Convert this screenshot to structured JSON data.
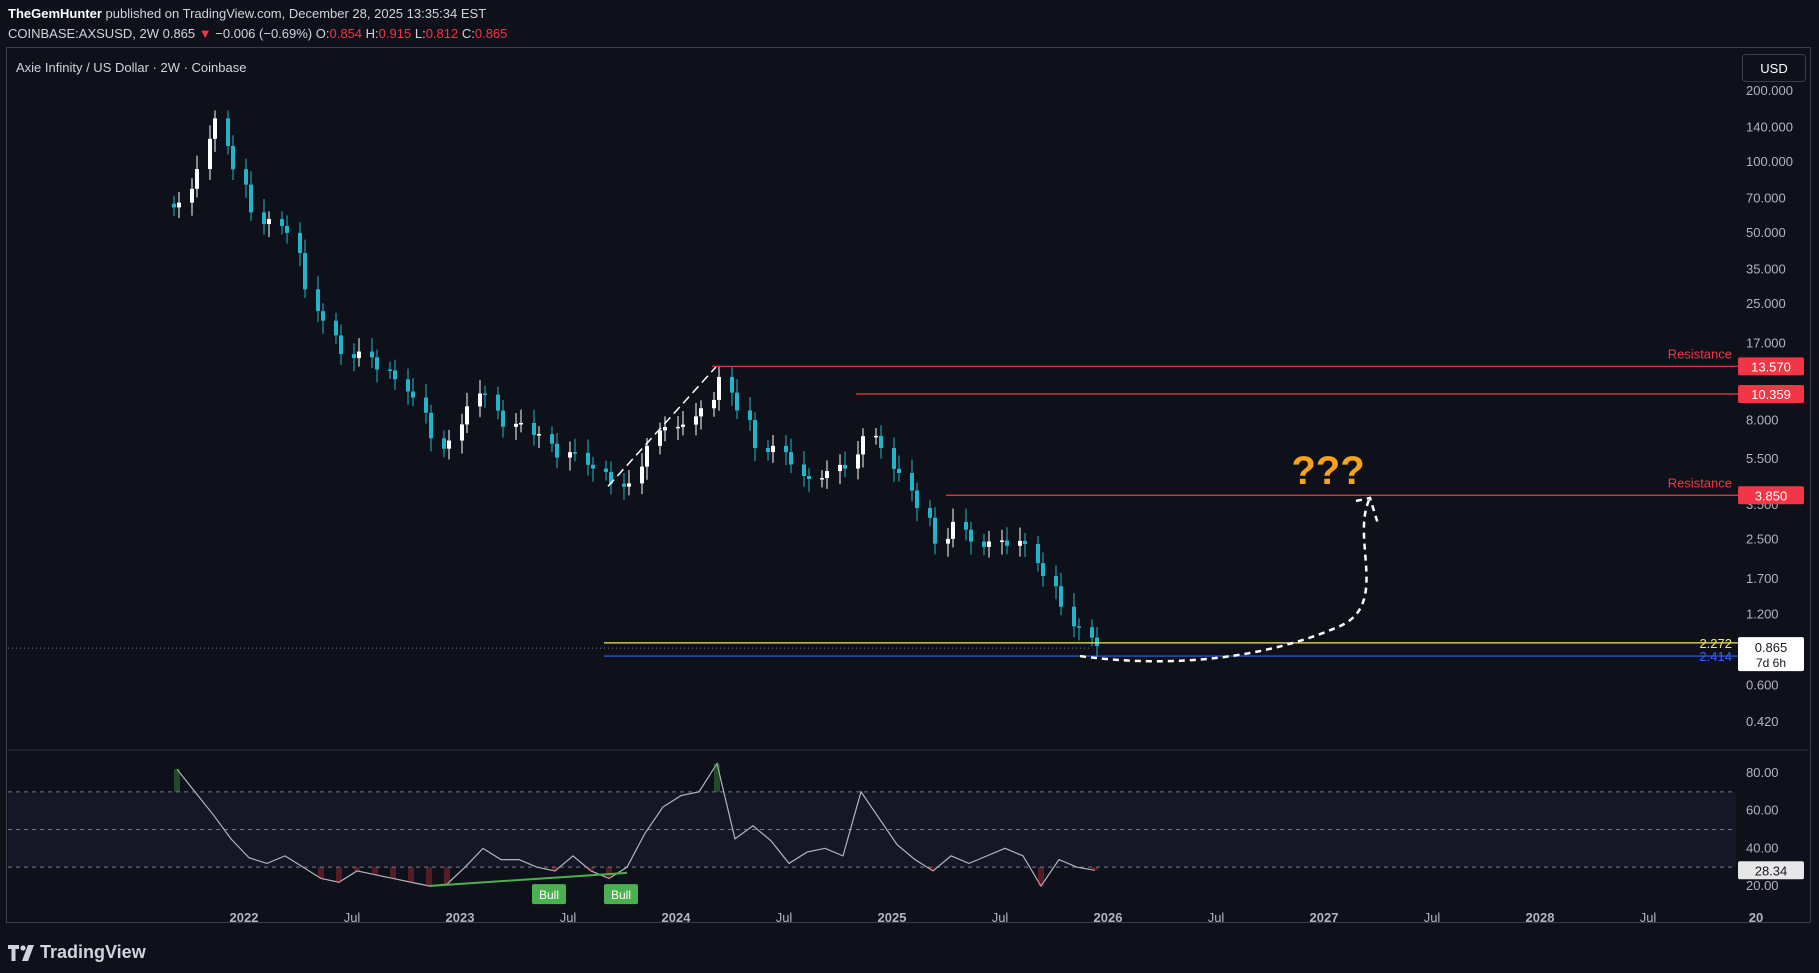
{
  "header": {
    "author": "TheGemHunter",
    "published": "published on TradingView.com, December 28, 2025 13:35:34 EST",
    "symbol": "COINBASE:AXSUSD, 2W",
    "last": "0.865",
    "change_arrow": "▼",
    "change": "−0.006 (−0.69%)",
    "o_label": "O:",
    "o_value": "0.854",
    "h_label": "H:",
    "h_value": "0.915",
    "l_label": "L:",
    "l_value": "0.812",
    "c_label": "C:",
    "c_value": "0.865"
  },
  "legend": "Axie Infinity / US Dollar · 2W · Coinbase",
  "currency_button": "USD",
  "footer_brand": "TradingView",
  "colors": {
    "background": "#0e111a",
    "bull": "#ffffff",
    "bear": "#22b5c9",
    "resistance": "#f23645",
    "support_yellow": "#f5e66e",
    "support_blue": "#2962ff",
    "rsi_line": "#b2b5be",
    "rsi_band": "#7e57c2",
    "divergence": "#4caf50",
    "question": "#f7a21b"
  },
  "chart_data": {
    "type": "candlestick",
    "price_scale": "log",
    "x_range": [
      "2021-08",
      "2029-01"
    ],
    "price_axis_ticks": [
      "200.000",
      "140.000",
      "100.000",
      "70.000",
      "50.000",
      "35.000",
      "25.000",
      "17.000",
      "8.000",
      "5.500",
      "3.500",
      "2.500",
      "1.700",
      "1.200",
      "0.600",
      "0.420"
    ],
    "time_axis_ticks": [
      "2022",
      "Jul",
      "2023",
      "Jul",
      "2024",
      "Jul",
      "2025",
      "Jul",
      "2026",
      "Jul",
      "2027",
      "Jul",
      "2028",
      "Jul",
      "20"
    ],
    "ohlc_close_path": [
      [
        "2021-09",
        70
      ],
      [
        "2021-10",
        88
      ],
      [
        "2021-11",
        150
      ],
      [
        "2021-12",
        95
      ],
      [
        "2022-01",
        65
      ],
      [
        "2022-02",
        55
      ],
      [
        "2022-03",
        50
      ],
      [
        "2022-04",
        30
      ],
      [
        "2022-05",
        20
      ],
      [
        "2022-06",
        15
      ],
      [
        "2022-07",
        16
      ],
      [
        "2022-08",
        14
      ],
      [
        "2022-09",
        11.5
      ],
      [
        "2022-10",
        10
      ],
      [
        "2022-11",
        7
      ],
      [
        "2022-12",
        6.2
      ],
      [
        "2023-01",
        9
      ],
      [
        "2023-02",
        10.5
      ],
      [
        "2023-03",
        8
      ],
      [
        "2023-04",
        7.5
      ],
      [
        "2023-05",
        7
      ],
      [
        "2023-06",
        5.8
      ],
      [
        "2023-07",
        5.5
      ],
      [
        "2023-08",
        4.9
      ],
      [
        "2023-09",
        4.4
      ],
      [
        "2023-10",
        4.6
      ],
      [
        "2023-11",
        6
      ],
      [
        "2023-12",
        7.5
      ],
      [
        "2024-01",
        8
      ],
      [
        "2024-02",
        8.5
      ],
      [
        "2024-03",
        12
      ],
      [
        "2024-04",
        9
      ],
      [
        "2024-05",
        6.5
      ],
      [
        "2024-06",
        6.0
      ],
      [
        "2024-07",
        5.2
      ],
      [
        "2024-08",
        4.7
      ],
      [
        "2024-09",
        4.6
      ],
      [
        "2024-10",
        4.9
      ],
      [
        "2024-11",
        7
      ],
      [
        "2024-12",
        6.5
      ],
      [
        "2025-01",
        4.6
      ],
      [
        "2025-02",
        3.4
      ],
      [
        "2025-03",
        2.5
      ],
      [
        "2025-04",
        2.8
      ],
      [
        "2025-05",
        2.4
      ],
      [
        "2025-06",
        2.5
      ],
      [
        "2025-07",
        2.5
      ],
      [
        "2025-08",
        2.3
      ],
      [
        "2025-09",
        1.75
      ],
      [
        "2025-10",
        1.35
      ],
      [
        "2025-11",
        1.0
      ],
      [
        "2025-12",
        0.865
      ]
    ],
    "last_price": "0.865",
    "countdown": "7d 6h",
    "horizontal_levels": [
      {
        "label": "Resistance",
        "value": "13.570",
        "color": "#f23645"
      },
      {
        "label": "",
        "value": "10.359",
        "color": "#f23645"
      },
      {
        "label": "Resistance",
        "value": "3.850",
        "color": "#f23645"
      },
      {
        "label": "2.272",
        "value": "0.91",
        "color": "#f5e66e"
      },
      {
        "label": "2.414",
        "value": "0.80",
        "color": "#2962ff"
      }
    ],
    "annotation_text": "???",
    "rsi": {
      "axis_ticks": [
        "80.00",
        "60.00",
        "40.00",
        "20.00"
      ],
      "bands": [
        70,
        50,
        30
      ],
      "last_value": "28.34",
      "divergence_labels": [
        "Bull",
        "Bull"
      ],
      "values": [
        [
          "2021-09",
          82
        ],
        [
          "2021-10",
          70
        ],
        [
          "2021-11",
          58
        ],
        [
          "2021-12",
          45
        ],
        [
          "2022-01",
          35
        ],
        [
          "2022-02",
          32
        ],
        [
          "2022-03",
          36
        ],
        [
          "2022-04",
          30
        ],
        [
          "2022-05",
          24
        ],
        [
          "2022-06",
          22
        ],
        [
          "2022-07",
          28
        ],
        [
          "2022-08",
          26
        ],
        [
          "2022-09",
          24
        ],
        [
          "2022-10",
          22
        ],
        [
          "2022-11",
          20
        ],
        [
          "2022-12",
          21
        ],
        [
          "2023-01",
          30
        ],
        [
          "2023-02",
          40
        ],
        [
          "2023-03",
          34
        ],
        [
          "2023-04",
          34
        ],
        [
          "2023-05",
          30
        ],
        [
          "2023-06",
          28
        ],
        [
          "2023-07",
          36
        ],
        [
          "2023-08",
          28
        ],
        [
          "2023-09",
          24
        ],
        [
          "2023-10",
          30
        ],
        [
          "2023-11",
          48
        ],
        [
          "2023-12",
          62
        ],
        [
          "2024-01",
          68
        ],
        [
          "2024-02",
          70
        ],
        [
          "2024-03",
          85
        ],
        [
          "2024-04",
          45
        ],
        [
          "2024-05",
          52
        ],
        [
          "2024-06",
          44
        ],
        [
          "2024-07",
          32
        ],
        [
          "2024-08",
          38
        ],
        [
          "2024-09",
          40
        ],
        [
          "2024-10",
          36
        ],
        [
          "2024-11",
          70
        ],
        [
          "2024-12",
          56
        ],
        [
          "2025-01",
          42
        ],
        [
          "2025-02",
          34
        ],
        [
          "2025-03",
          28
        ],
        [
          "2025-04",
          36
        ],
        [
          "2025-05",
          32
        ],
        [
          "2025-06",
          36
        ],
        [
          "2025-07",
          40
        ],
        [
          "2025-08",
          36
        ],
        [
          "2025-09",
          20
        ],
        [
          "2025-10",
          34
        ],
        [
          "2025-11",
          30
        ],
        [
          "2025-12",
          28.34
        ]
      ]
    }
  }
}
